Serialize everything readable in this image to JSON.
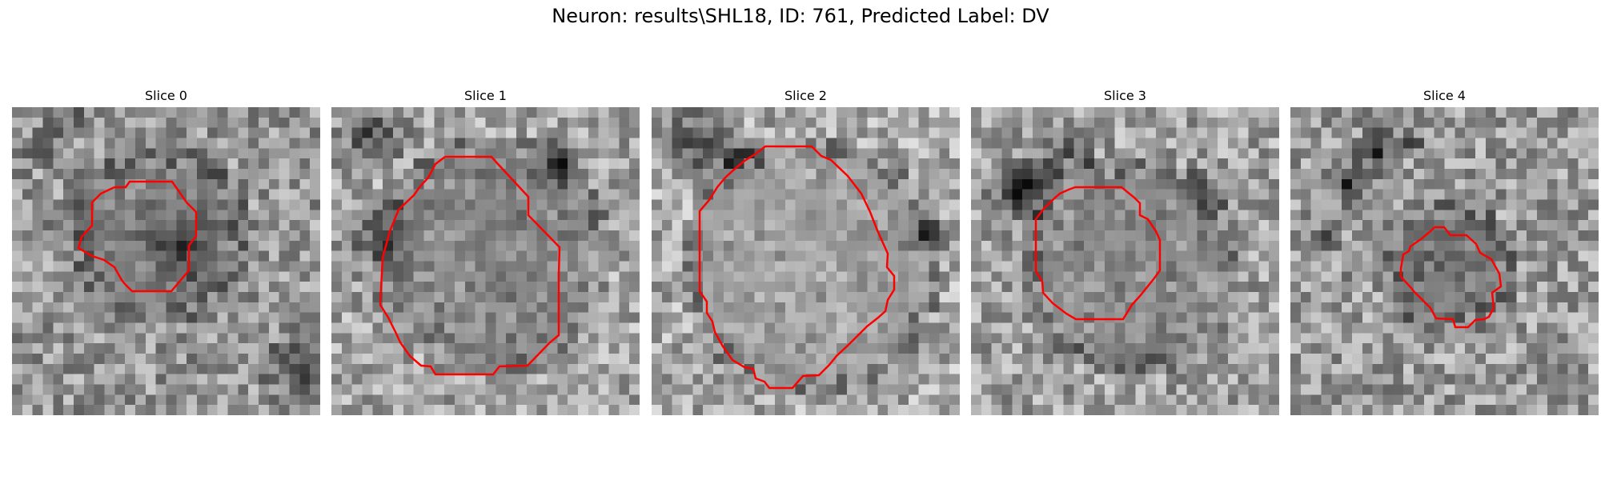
{
  "figure": {
    "title": "Neuron: results\\SHL18, ID: 761, Predicted Label: DV"
  },
  "colors": {
    "contour": "#ff0000",
    "colormap": "gray"
  },
  "panels": [
    {
      "title": "Slice 0"
    },
    {
      "title": "Slice 1"
    },
    {
      "title": "Slice 2"
    },
    {
      "title": "Slice 3"
    },
    {
      "title": "Slice 4"
    }
  ]
}
